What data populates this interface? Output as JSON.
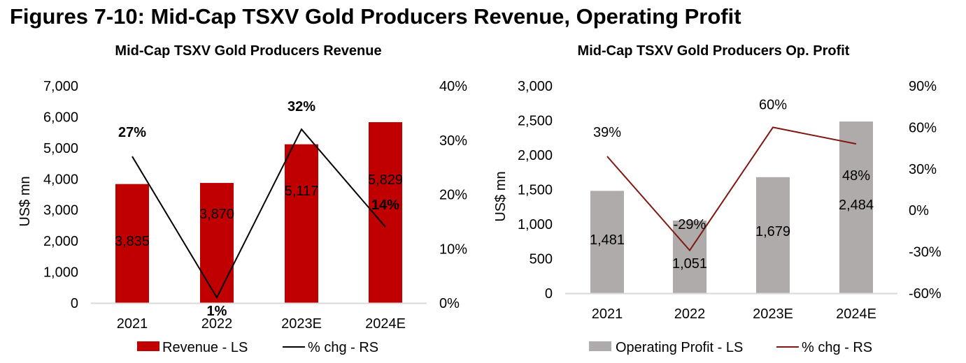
{
  "page": {
    "title": "Figures 7-10: Mid-Cap TSXV Gold Producers Revenue, Operating Profit"
  },
  "chart_data": [
    {
      "type": "bar",
      "title": "Mid-Cap TSXV Gold Producers Revenue",
      "categories": [
        "2021",
        "2022",
        "2023E",
        "2024E"
      ],
      "ylabel": "US$ mn",
      "y2label": "",
      "ylim": [
        0,
        7000
      ],
      "y2lim": [
        0,
        0.4
      ],
      "yticks": [
        "0",
        "1,000",
        "2,000",
        "3,000",
        "4,000",
        "5,000",
        "6,000",
        "7,000"
      ],
      "y2ticks": [
        "0%",
        "10%",
        "20%",
        "30%",
        "40%"
      ],
      "grid": false,
      "legend_position": "bottom",
      "series": [
        {
          "name": "Revenue - LS",
          "kind": "bar",
          "axis": "left",
          "color": "#c00000",
          "values": [
            3835,
            3870,
            5117,
            5829
          ],
          "labels": [
            "3,835",
            "3,870",
            "5,117",
            "5,829"
          ]
        },
        {
          "name": "% chg - RS",
          "kind": "line",
          "axis": "right",
          "color": "#000000",
          "values": [
            0.27,
            0.01,
            0.32,
            0.14
          ],
          "labels": [
            "27%",
            "1%",
            "32%",
            "14%"
          ],
          "label_bold": true
        }
      ]
    },
    {
      "type": "bar",
      "title": "Mid-Cap TSXV Gold Producers Op. Profit",
      "categories": [
        "2021",
        "2022",
        "2023E",
        "2024E"
      ],
      "ylabel": "US$ mn",
      "y2label": "",
      "ylim": [
        0,
        3000
      ],
      "y2lim": [
        -0.6,
        0.9
      ],
      "yticks": [
        "0",
        "500",
        "1,000",
        "1,500",
        "2,000",
        "2,500",
        "3,000"
      ],
      "y2ticks": [
        "-60%",
        "-30%",
        "0%",
        "30%",
        "60%",
        "90%"
      ],
      "grid": false,
      "legend_position": "bottom",
      "series": [
        {
          "name": "Operating Profit - LS",
          "kind": "bar",
          "axis": "left",
          "color": "#afabab",
          "values": [
            1481,
            1051,
            1679,
            2484
          ],
          "labels": [
            "1,481",
            "1,051",
            "1,679",
            "2,484"
          ]
        },
        {
          "name": "% chg - RS",
          "kind": "line",
          "axis": "right",
          "color": "#7f1a12",
          "values": [
            0.39,
            -0.29,
            0.6,
            0.48
          ],
          "labels": [
            "39%",
            "-29%",
            "60%",
            "48%"
          ],
          "label_bold": false
        }
      ]
    }
  ]
}
